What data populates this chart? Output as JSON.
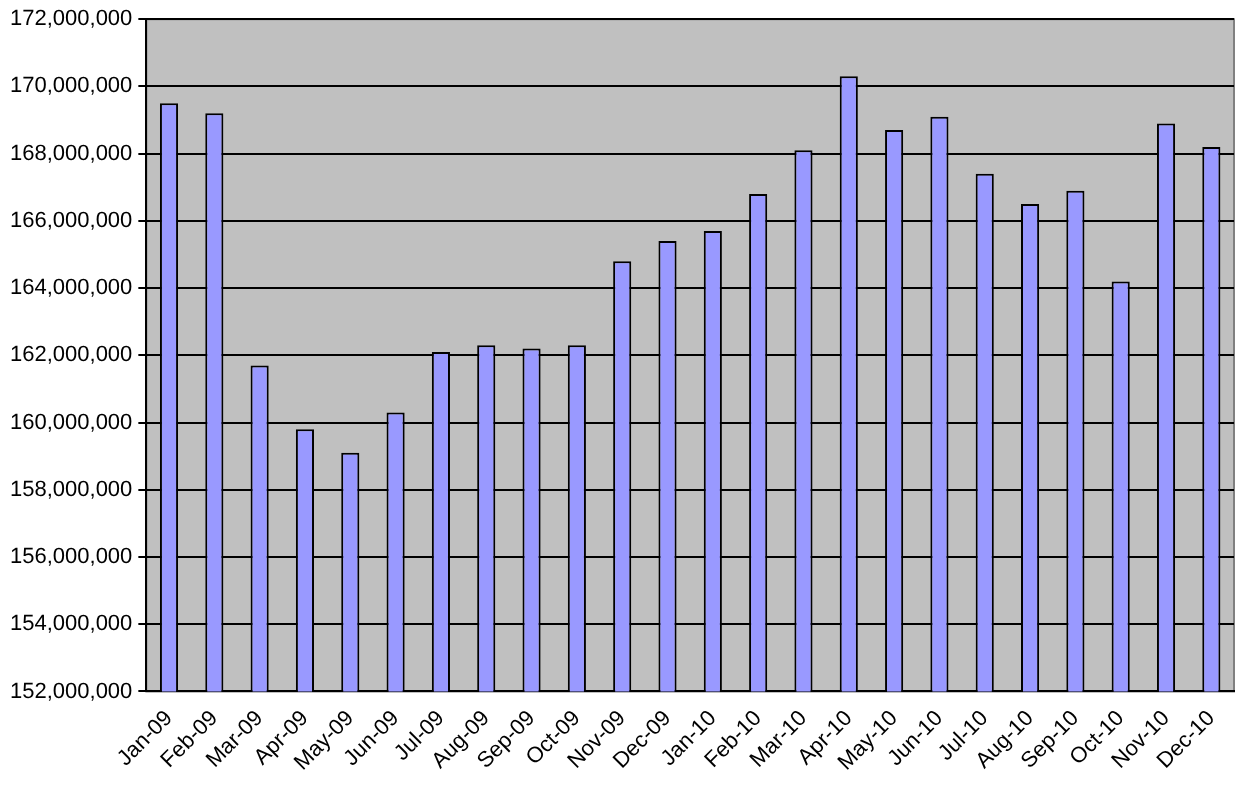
{
  "chart_data": {
    "type": "bar",
    "categories": [
      "Jan-09",
      "Feb-09",
      "Mar-09",
      "Apr-09",
      "May-09",
      "Jun-09",
      "Jul-09",
      "Aug-09",
      "Sep-09",
      "Oct-09",
      "Nov-09",
      "Dec-09",
      "Jan-10",
      "Feb-10",
      "Mar-10",
      "Apr-10",
      "May-10",
      "Jun-10",
      "Jul-10",
      "Aug-10",
      "Sep-10",
      "Oct-10",
      "Nov-10",
      "Dec-10"
    ],
    "values": [
      169500000,
      169200000,
      161700000,
      159800000,
      159100000,
      160300000,
      162100000,
      162300000,
      162200000,
      162300000,
      164800000,
      165400000,
      165700000,
      166800000,
      168100000,
      170300000,
      168700000,
      169100000,
      167400000,
      166500000,
      166900000,
      164200000,
      168900000,
      168200000
    ],
    "color": "#9999ff",
    "ylim": [
      152000000,
      172000000
    ],
    "yticks": [
      {
        "value": 152000000,
        "label": "152,000,000"
      },
      {
        "value": 154000000,
        "label": "154,000,000"
      },
      {
        "value": 156000000,
        "label": "156,000,000"
      },
      {
        "value": 158000000,
        "label": "158,000,000"
      },
      {
        "value": 160000000,
        "label": "160,000,000"
      },
      {
        "value": 162000000,
        "label": "162,000,000"
      },
      {
        "value": 164000000,
        "label": "164,000,000"
      },
      {
        "value": 166000000,
        "label": "166,000,000"
      },
      {
        "value": 168000000,
        "label": "168,000,000"
      },
      {
        "value": 170000000,
        "label": "170,000,000"
      },
      {
        "value": 172000000,
        "label": "172,000,000"
      }
    ],
    "grid": "y",
    "legend": false
  }
}
